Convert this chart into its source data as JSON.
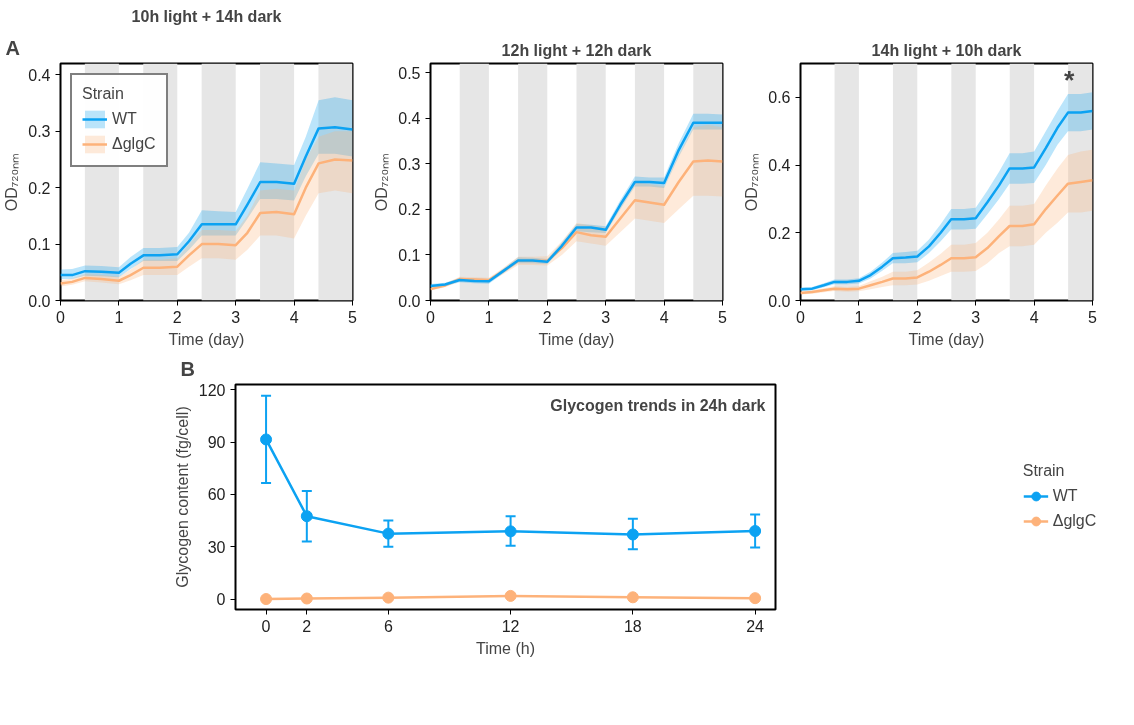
{
  "chart_data": [
    {
      "type": "line",
      "title": "10h light + 14h dark",
      "xlabel": "Time (day)",
      "ylabel": "OD₇₂₀ₙₘ",
      "annotations": [
        "A"
      ],
      "grid": false,
      "legend": "top left",
      "legend_title": "Strain",
      "x": [
        0,
        0.2,
        0.42,
        0.7,
        1.0,
        1.2,
        1.42,
        1.7,
        2.0,
        2.2,
        2.42,
        2.7,
        3.0,
        3.2,
        3.42,
        3.7,
        4.0,
        4.2,
        4.42,
        4.7,
        5.0
      ],
      "xlim": [
        0,
        5
      ],
      "xticks": [
        0,
        1,
        2,
        3,
        4,
        5
      ],
      "ylim": [
        0,
        0.42
      ],
      "yticks": [
        {
          "value": 0,
          "label": "0.0"
        },
        {
          "value": 0.1,
          "label": "0.1"
        },
        {
          "value": 0.2,
          "label": "0.2"
        },
        {
          "value": 0.3,
          "label": "0.3"
        },
        {
          "value": 0.4,
          "label": "0.4"
        }
      ],
      "bands": [
        {
          "axis": "x",
          "from": 0.417,
          "to": 1,
          "color": "#e6e6e6"
        },
        {
          "axis": "x",
          "from": 1.417,
          "to": 2,
          "color": "#e6e6e6"
        },
        {
          "axis": "x",
          "from": 2.417,
          "to": 3,
          "color": "#e6e6e6"
        },
        {
          "axis": "x",
          "from": 3.417,
          "to": 4,
          "color": "#e6e6e6"
        },
        {
          "axis": "x",
          "from": 4.417,
          "to": 5,
          "color": "#e6e6e6"
        }
      ],
      "series": [
        {
          "name": "WT",
          "color": "#0ca2f2",
          "values": [
            0.045,
            0.045,
            0.052,
            0.051,
            0.049,
            0.065,
            0.08,
            0.08,
            0.082,
            0.105,
            0.135,
            0.135,
            0.135,
            0.17,
            0.21,
            0.21,
            0.207,
            0.255,
            0.305,
            0.307,
            0.303
          ],
          "lower": [
            0.038,
            0.038,
            0.044,
            0.043,
            0.041,
            0.056,
            0.07,
            0.07,
            0.07,
            0.09,
            0.115,
            0.115,
            0.115,
            0.145,
            0.18,
            0.18,
            0.177,
            0.22,
            0.26,
            0.26,
            0.255
          ],
          "upper": [
            0.055,
            0.056,
            0.062,
            0.061,
            0.059,
            0.077,
            0.093,
            0.093,
            0.095,
            0.12,
            0.16,
            0.158,
            0.157,
            0.198,
            0.245,
            0.243,
            0.24,
            0.29,
            0.355,
            0.36,
            0.355
          ]
        },
        {
          "name": "ΔglgC",
          "color": "#fdb27a",
          "values": [
            0.03,
            0.033,
            0.04,
            0.038,
            0.035,
            0.045,
            0.058,
            0.058,
            0.06,
            0.08,
            0.1,
            0.1,
            0.098,
            0.12,
            0.155,
            0.157,
            0.153,
            0.2,
            0.243,
            0.25,
            0.248
          ],
          "lower": [
            0.025,
            0.028,
            0.034,
            0.032,
            0.029,
            0.036,
            0.045,
            0.045,
            0.045,
            0.06,
            0.075,
            0.075,
            0.072,
            0.09,
            0.115,
            0.115,
            0.11,
            0.15,
            0.19,
            0.195,
            0.19
          ],
          "upper": [
            0.036,
            0.039,
            0.047,
            0.045,
            0.042,
            0.055,
            0.072,
            0.072,
            0.075,
            0.1,
            0.125,
            0.125,
            0.123,
            0.15,
            0.195,
            0.198,
            0.195,
            0.25,
            0.29,
            0.3,
            0.3
          ]
        }
      ]
    },
    {
      "type": "line",
      "title": "12h light + 12h dark",
      "xlabel": "Time (day)",
      "ylabel": "OD₇₂₀ₙₘ",
      "grid": false,
      "x": [
        0,
        0.25,
        0.5,
        0.75,
        1.0,
        1.25,
        1.5,
        1.75,
        2.0,
        2.25,
        2.5,
        2.75,
        3.0,
        3.25,
        3.5,
        3.75,
        4.0,
        4.25,
        4.5,
        4.75,
        5.0
      ],
      "xlim": [
        0,
        5
      ],
      "xticks": [
        0,
        1,
        2,
        3,
        4,
        5
      ],
      "ylim": [
        0,
        0.52
      ],
      "yticks": [
        {
          "value": 0,
          "label": "0.0"
        },
        {
          "value": 0.1,
          "label": "0.1"
        },
        {
          "value": 0.2,
          "label": "0.2"
        },
        {
          "value": 0.3,
          "label": "0.3"
        },
        {
          "value": 0.4,
          "label": "0.4"
        },
        {
          "value": 0.5,
          "label": "0.5"
        }
      ],
      "bands": [
        {
          "axis": "x",
          "from": 0.5,
          "to": 1,
          "color": "#e6e6e6"
        },
        {
          "axis": "x",
          "from": 1.5,
          "to": 2,
          "color": "#e6e6e6"
        },
        {
          "axis": "x",
          "from": 2.5,
          "to": 3,
          "color": "#e6e6e6"
        },
        {
          "axis": "x",
          "from": 3.5,
          "to": 4,
          "color": "#e6e6e6"
        },
        {
          "axis": "x",
          "from": 4.5,
          "to": 5,
          "color": "#e6e6e6"
        }
      ],
      "series": [
        {
          "color": "#0ca2f2",
          "values": [
            0.032,
            0.035,
            0.045,
            0.043,
            0.042,
            0.065,
            0.088,
            0.088,
            0.085,
            0.12,
            0.16,
            0.16,
            0.155,
            0.21,
            0.26,
            0.26,
            0.258,
            0.33,
            0.39,
            0.39,
            0.39
          ],
          "lower": [
            0.028,
            0.031,
            0.04,
            0.038,
            0.037,
            0.06,
            0.082,
            0.082,
            0.08,
            0.113,
            0.152,
            0.15,
            0.148,
            0.2,
            0.25,
            0.25,
            0.247,
            0.315,
            0.375,
            0.375,
            0.375
          ],
          "upper": [
            0.036,
            0.039,
            0.05,
            0.048,
            0.047,
            0.07,
            0.095,
            0.094,
            0.091,
            0.128,
            0.168,
            0.166,
            0.163,
            0.22,
            0.272,
            0.27,
            0.27,
            0.345,
            0.41,
            0.41,
            0.408
          ]
        },
        {
          "color": "#fdb27a",
          "values": [
            0.025,
            0.033,
            0.047,
            0.046,
            0.045,
            0.065,
            0.087,
            0.087,
            0.087,
            0.115,
            0.15,
            0.143,
            0.14,
            0.18,
            0.22,
            0.215,
            0.21,
            0.26,
            0.305,
            0.307,
            0.305
          ],
          "lower": [
            0.022,
            0.029,
            0.042,
            0.041,
            0.04,
            0.058,
            0.078,
            0.078,
            0.077,
            0.1,
            0.13,
            0.125,
            0.12,
            0.15,
            0.18,
            0.175,
            0.17,
            0.2,
            0.23,
            0.23,
            0.228
          ],
          "upper": [
            0.028,
            0.037,
            0.052,
            0.051,
            0.05,
            0.072,
            0.096,
            0.096,
            0.097,
            0.13,
            0.17,
            0.165,
            0.16,
            0.21,
            0.26,
            0.255,
            0.25,
            0.32,
            0.38,
            0.385,
            0.38
          ]
        }
      ]
    },
    {
      "type": "line",
      "title": "14h light + 10h dark",
      "xlabel": "Time (day)",
      "ylabel": "OD₇₂₀ₙₘ",
      "grid": false,
      "annotations": [
        {
          "text": "*",
          "x": 4.6,
          "y": 0.65
        }
      ],
      "x": [
        0,
        0.2,
        0.4,
        0.58,
        0.8,
        1.0,
        1.2,
        1.4,
        1.58,
        1.8,
        2.0,
        2.2,
        2.4,
        2.58,
        2.8,
        3.0,
        3.2,
        3.4,
        3.58,
        3.8,
        4.0,
        4.2,
        4.4,
        4.58,
        4.8,
        5.0
      ],
      "xlim": [
        0,
        5
      ],
      "xticks": [
        0,
        1,
        2,
        3,
        4,
        5
      ],
      "ylim": [
        0,
        0.7
      ],
      "yticks": [
        {
          "value": 0,
          "label": "0.0"
        },
        {
          "value": 0.2,
          "label": "0.2"
        },
        {
          "value": 0.4,
          "label": "0.4"
        },
        {
          "value": 0.6,
          "label": "0.6"
        }
      ],
      "bands": [
        {
          "axis": "x",
          "from": 0.583,
          "to": 1,
          "color": "#e6e6e6"
        },
        {
          "axis": "x",
          "from": 1.583,
          "to": 2,
          "color": "#e6e6e6"
        },
        {
          "axis": "x",
          "from": 2.583,
          "to": 3,
          "color": "#e6e6e6"
        },
        {
          "axis": "x",
          "from": 3.583,
          "to": 4,
          "color": "#e6e6e6"
        },
        {
          "axis": "x",
          "from": 4.583,
          "to": 5,
          "color": "#e6e6e6"
        }
      ],
      "series": [
        {
          "color": "#0ca2f2",
          "values": [
            0.033,
            0.035,
            0.045,
            0.055,
            0.055,
            0.058,
            0.075,
            0.1,
            0.125,
            0.127,
            0.13,
            0.16,
            0.2,
            0.24,
            0.24,
            0.243,
            0.29,
            0.34,
            0.39,
            0.39,
            0.393,
            0.45,
            0.51,
            0.555,
            0.555,
            0.56
          ],
          "lower": [
            0.028,
            0.03,
            0.039,
            0.048,
            0.048,
            0.05,
            0.065,
            0.088,
            0.11,
            0.11,
            0.113,
            0.14,
            0.175,
            0.21,
            0.21,
            0.212,
            0.255,
            0.3,
            0.345,
            0.345,
            0.347,
            0.4,
            0.46,
            0.5,
            0.5,
            0.505
          ],
          "upper": [
            0.038,
            0.04,
            0.051,
            0.062,
            0.062,
            0.066,
            0.085,
            0.112,
            0.14,
            0.143,
            0.147,
            0.18,
            0.225,
            0.27,
            0.27,
            0.274,
            0.325,
            0.38,
            0.435,
            0.435,
            0.44,
            0.5,
            0.56,
            0.61,
            0.61,
            0.615
          ]
        },
        {
          "color": "#fdb27a",
          "values": [
            0.022,
            0.025,
            0.03,
            0.035,
            0.033,
            0.035,
            0.045,
            0.055,
            0.065,
            0.065,
            0.068,
            0.085,
            0.105,
            0.125,
            0.125,
            0.128,
            0.155,
            0.19,
            0.22,
            0.22,
            0.225,
            0.27,
            0.31,
            0.345,
            0.35,
            0.355
          ],
          "lower": [
            0.018,
            0.02,
            0.024,
            0.028,
            0.026,
            0.027,
            0.033,
            0.04,
            0.045,
            0.045,
            0.047,
            0.058,
            0.072,
            0.085,
            0.085,
            0.087,
            0.11,
            0.14,
            0.16,
            0.16,
            0.165,
            0.2,
            0.23,
            0.26,
            0.26,
            0.265
          ],
          "upper": [
            0.026,
            0.03,
            0.036,
            0.042,
            0.04,
            0.043,
            0.057,
            0.07,
            0.085,
            0.085,
            0.089,
            0.112,
            0.138,
            0.165,
            0.165,
            0.17,
            0.2,
            0.24,
            0.28,
            0.28,
            0.285,
            0.34,
            0.39,
            0.43,
            0.44,
            0.445
          ]
        }
      ]
    },
    {
      "type": "line",
      "title": "Glycogen trends in 24h dark",
      "xlabel": "Time (h)",
      "ylabel": "Glycogen content (fg/cell)",
      "annotations": [
        "B"
      ],
      "grid": false,
      "legend": "right",
      "legend_title": "Strain",
      "marker": "circle",
      "x": [
        0,
        2,
        6,
        12,
        18,
        24
      ],
      "xlim": [
        -1.5,
        25
      ],
      "xticks": [
        0,
        2,
        6,
        12,
        18,
        24
      ],
      "ylim": [
        -6,
        123
      ],
      "yticks": [
        0,
        30,
        60,
        90,
        120
      ],
      "series": [
        {
          "name": "WT",
          "color": "#0ca2f2",
          "values": [
            91.5,
            47.5,
            37.5,
            38.8,
            37,
            39
          ],
          "errors": [
            [
              66.5,
              116.5
            ],
            [
              33,
              62
            ],
            [
              30,
              45
            ],
            [
              30.5,
              47.5
            ],
            [
              28.5,
              46
            ],
            [
              29.5,
              48.5
            ]
          ]
        },
        {
          "name": "ΔglgC",
          "color": "#fdb27a",
          "values": [
            0,
            0.3,
            0.8,
            1.8,
            1.0,
            0.5
          ]
        }
      ]
    }
  ]
}
